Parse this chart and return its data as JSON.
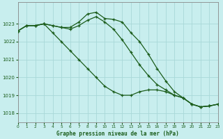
{
  "title": "Graphe pression niveau de la mer (hPa)",
  "background_color": "#c8eeee",
  "grid_color": "#a8d8d8",
  "line_color": "#1a5c1a",
  "xlim": [
    0,
    23
  ],
  "ylim": [
    1017.5,
    1024.2
  ],
  "yticks": [
    1018,
    1019,
    1020,
    1021,
    1022,
    1023
  ],
  "xticks": [
    0,
    1,
    2,
    3,
    4,
    5,
    6,
    7,
    8,
    9,
    10,
    11,
    12,
    13,
    14,
    15,
    16,
    17,
    18,
    19,
    20,
    21,
    22,
    23
  ],
  "series1_x": [
    0,
    1,
    2,
    3,
    4,
    5,
    6,
    7,
    8,
    9,
    10,
    11,
    12,
    13,
    14,
    15,
    16,
    17,
    18,
    19,
    20,
    21,
    22,
    23
  ],
  "series1_y": [
    1022.6,
    1022.9,
    1022.9,
    1023.0,
    1022.9,
    1022.8,
    1022.8,
    1023.1,
    1023.55,
    1023.65,
    1023.3,
    1023.25,
    1023.1,
    1022.5,
    1022.0,
    1021.3,
    1020.5,
    1019.8,
    1019.2,
    1018.85,
    1018.5,
    1018.35,
    1018.4,
    1018.5
  ],
  "series2_x": [
    0,
    1,
    2,
    3,
    4,
    5,
    6,
    7,
    8,
    9,
    10,
    11,
    12,
    13,
    14,
    15,
    16,
    17,
    18,
    19,
    20,
    21,
    22,
    23
  ],
  "series2_y": [
    1022.6,
    1022.9,
    1022.9,
    1023.0,
    1022.5,
    1022.0,
    1021.5,
    1021.0,
    1020.5,
    1020.0,
    1019.5,
    1019.2,
    1019.0,
    1019.0,
    1019.2,
    1019.3,
    1019.3,
    1019.2,
    1019.0,
    1018.85,
    1018.5,
    1018.35,
    1018.4,
    1018.5
  ],
  "series3_x": [
    0,
    1,
    2,
    3,
    4,
    5,
    6,
    7,
    8,
    9,
    10,
    11,
    12,
    13,
    14,
    15,
    16,
    17,
    18,
    19,
    20,
    21,
    22,
    23
  ],
  "series3_y": [
    1022.6,
    1022.9,
    1022.9,
    1023.0,
    1022.9,
    1022.8,
    1022.7,
    1022.9,
    1023.2,
    1023.4,
    1023.1,
    1022.7,
    1022.1,
    1021.4,
    1020.7,
    1020.1,
    1019.6,
    1019.3,
    1019.0,
    1018.85,
    1018.5,
    1018.35,
    1018.4,
    1018.5
  ]
}
